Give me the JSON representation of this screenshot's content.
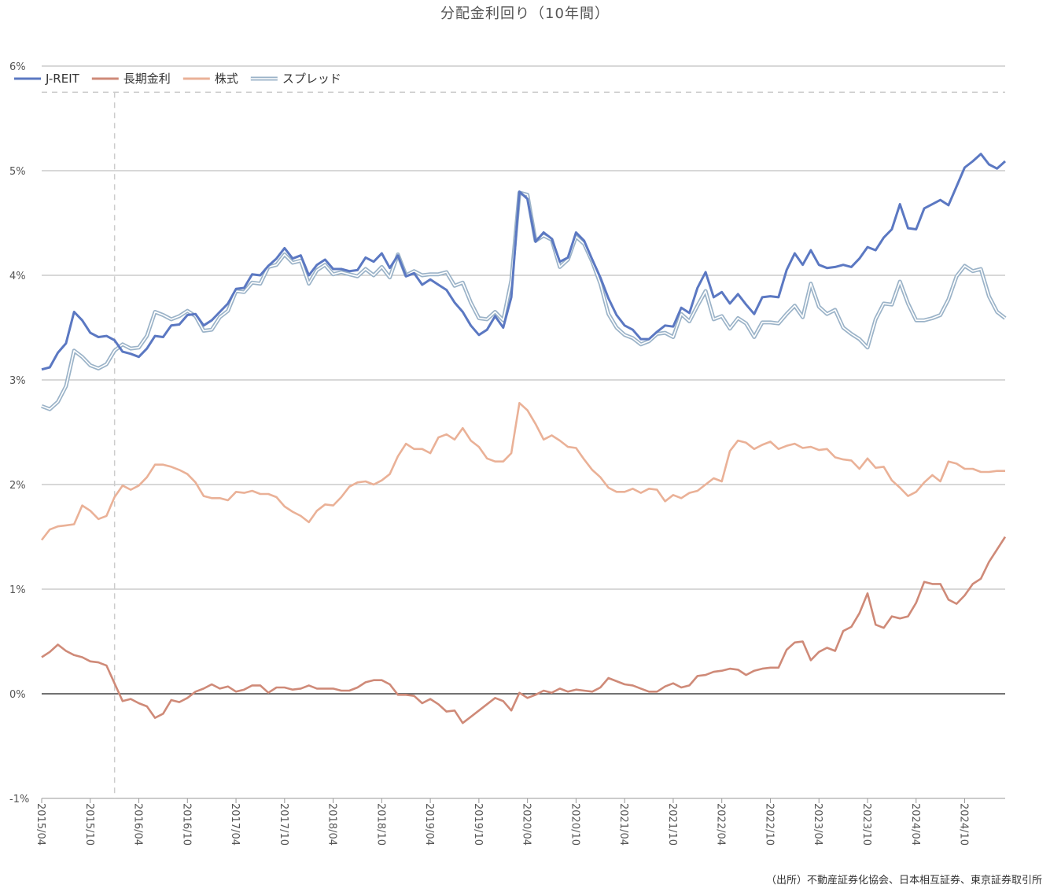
{
  "title": "分配金利回り（10年間）",
  "source": "（出所）不動産証券化協会、日本相互証券、東京証券取引所",
  "colors": {
    "jreit": "#5b78c2",
    "bond": "#cf8a78",
    "stock": "#eab197",
    "spread": "#9bb3c8",
    "grid": "#c0c0c0",
    "zero": "#444444",
    "dash": "#cccccc"
  },
  "chart_data": {
    "type": "line",
    "title": "分配金利回り（10年間）",
    "y_unit": "%",
    "ylim": [
      -1,
      6
    ],
    "y_ticks": [
      {
        "value": 6,
        "label": "6%"
      },
      {
        "value": 5,
        "label": "5%"
      },
      {
        "value": 4,
        "label": "4%"
      },
      {
        "value": 3,
        "label": "3%"
      },
      {
        "value": 2,
        "label": "2%"
      },
      {
        "value": 1,
        "label": "1%"
      },
      {
        "value": 0,
        "label": "0%"
      },
      {
        "value": -1,
        "label": "-1%"
      }
    ],
    "x_start": "2015/04",
    "x_ticks": [
      "2015/04",
      "2015/10",
      "2016/04",
      "2016/10",
      "2017/04",
      "2017/10",
      "2018/04",
      "2018/10",
      "2019/04",
      "2019/10",
      "2020/04",
      "2020/10",
      "2021/04",
      "2021/10",
      "2022/04",
      "2022/10",
      "2023/04",
      "2023/10",
      "2024/04",
      "2024/10"
    ],
    "grid": true,
    "legend_position": "top-left",
    "vertical_reference_month": "2016/01",
    "dashed_reference_level": 5.75,
    "series": [
      {
        "key": "jreit",
        "name": "J-REIT",
        "style": "solid-thick",
        "values": [
          3.1,
          3.12,
          3.26,
          3.35,
          3.65,
          3.57,
          3.45,
          3.41,
          3.42,
          3.38,
          3.27,
          3.25,
          3.22,
          3.3,
          3.42,
          3.41,
          3.52,
          3.53,
          3.62,
          3.63,
          3.52,
          3.57,
          3.65,
          3.73,
          3.87,
          3.88,
          4.01,
          4.0,
          4.09,
          4.16,
          4.26,
          4.16,
          4.19,
          4.0,
          4.1,
          4.15,
          4.06,
          4.06,
          4.04,
          4.05,
          4.17,
          4.13,
          4.21,
          4.07,
          4.19,
          3.99,
          4.02,
          3.91,
          3.96,
          3.91,
          3.86,
          3.74,
          3.65,
          3.52,
          3.43,
          3.48,
          3.61,
          3.5,
          3.79,
          4.8,
          4.73,
          4.32,
          4.41,
          4.35,
          4.13,
          4.17,
          4.41,
          4.33,
          4.15,
          3.98,
          3.78,
          3.62,
          3.52,
          3.48,
          3.39,
          3.39,
          3.46,
          3.52,
          3.51,
          3.69,
          3.64,
          3.88,
          4.03,
          3.79,
          3.84,
          3.73,
          3.82,
          3.72,
          3.63,
          3.79,
          3.8,
          3.79,
          4.05,
          4.21,
          4.1,
          4.24,
          4.1,
          4.07,
          4.08,
          4.1,
          4.08,
          4.16,
          4.27,
          4.24,
          4.36,
          4.44,
          4.68,
          4.45,
          4.44,
          4.64,
          4.68,
          4.72,
          4.67,
          4.85,
          5.03,
          5.09,
          5.16,
          5.06,
          5.02,
          5.09
        ]
      },
      {
        "key": "bond",
        "name": "長期金利",
        "style": "solid",
        "values": [
          0.35,
          0.4,
          0.47,
          0.41,
          0.37,
          0.35,
          0.31,
          0.3,
          0.27,
          0.1,
          -0.07,
          -0.05,
          -0.09,
          -0.12,
          -0.23,
          -0.19,
          -0.06,
          -0.08,
          -0.04,
          0.02,
          0.05,
          0.09,
          0.05,
          0.07,
          0.02,
          0.04,
          0.08,
          0.08,
          0.01,
          0.06,
          0.06,
          0.04,
          0.05,
          0.08,
          0.05,
          0.05,
          0.05,
          0.03,
          0.03,
          0.06,
          0.11,
          0.13,
          0.13,
          0.09,
          -0.01,
          -0.01,
          -0.02,
          -0.09,
          -0.05,
          -0.1,
          -0.17,
          -0.16,
          -0.28,
          -0.22,
          -0.16,
          -0.1,
          -0.04,
          -0.07,
          -0.16,
          0.01,
          -0.04,
          -0.01,
          0.03,
          0.01,
          0.05,
          0.02,
          0.04,
          0.03,
          0.02,
          0.06,
          0.15,
          0.12,
          0.09,
          0.08,
          0.05,
          0.02,
          0.02,
          0.07,
          0.1,
          0.06,
          0.08,
          0.17,
          0.18,
          0.21,
          0.22,
          0.24,
          0.23,
          0.18,
          0.22,
          0.24,
          0.25,
          0.25,
          0.42,
          0.49,
          0.5,
          0.32,
          0.4,
          0.44,
          0.41,
          0.6,
          0.64,
          0.77,
          0.96,
          0.66,
          0.63,
          0.74,
          0.72,
          0.74,
          0.87,
          1.07,
          1.05,
          1.05,
          0.9,
          0.86,
          0.94,
          1.05,
          1.1,
          1.26,
          1.38,
          1.5
        ]
      },
      {
        "key": "stock",
        "name": "株式",
        "style": "solid",
        "values": [
          1.47,
          1.57,
          1.6,
          1.61,
          1.62,
          1.8,
          1.75,
          1.67,
          1.7,
          1.88,
          1.99,
          1.95,
          1.99,
          2.07,
          2.19,
          2.19,
          2.17,
          2.14,
          2.1,
          2.02,
          1.89,
          1.87,
          1.87,
          1.85,
          1.93,
          1.92,
          1.94,
          1.91,
          1.91,
          1.88,
          1.79,
          1.74,
          1.7,
          1.64,
          1.75,
          1.81,
          1.8,
          1.88,
          1.98,
          2.02,
          2.03,
          2.0,
          2.04,
          2.1,
          2.27,
          2.39,
          2.34,
          2.34,
          2.3,
          2.45,
          2.48,
          2.43,
          2.54,
          2.42,
          2.36,
          2.25,
          2.22,
          2.22,
          2.3,
          2.78,
          2.71,
          2.58,
          2.43,
          2.47,
          2.42,
          2.36,
          2.35,
          2.24,
          2.14,
          2.07,
          1.97,
          1.93,
          1.93,
          1.96,
          1.92,
          1.96,
          1.95,
          1.84,
          1.9,
          1.87,
          1.92,
          1.94,
          2.0,
          2.06,
          2.03,
          2.32,
          2.42,
          2.4,
          2.34,
          2.38,
          2.41,
          2.34,
          2.37,
          2.39,
          2.35,
          2.36,
          2.33,
          2.34,
          2.26,
          2.24,
          2.23,
          2.15,
          2.25,
          2.16,
          2.17,
          2.04,
          1.97,
          1.89,
          1.93,
          2.02,
          2.09,
          2.03,
          2.22,
          2.2,
          2.15,
          2.15,
          2.12,
          2.12,
          2.13,
          2.13
        ]
      },
      {
        "key": "spread",
        "name": "スプレッド",
        "style": "double",
        "values": [
          2.75,
          2.72,
          2.79,
          2.94,
          3.28,
          3.22,
          3.14,
          3.11,
          3.15,
          3.28,
          3.34,
          3.3,
          3.31,
          3.42,
          3.65,
          3.62,
          3.58,
          3.61,
          3.66,
          3.61,
          3.47,
          3.48,
          3.6,
          3.66,
          3.85,
          3.84,
          3.93,
          3.92,
          4.08,
          4.1,
          4.2,
          4.12,
          4.14,
          3.92,
          4.05,
          4.1,
          4.01,
          4.03,
          4.01,
          3.99,
          4.06,
          4.0,
          4.08,
          3.98,
          4.2,
          4.0,
          4.04,
          4.0,
          4.01,
          4.01,
          4.03,
          3.9,
          3.93,
          3.74,
          3.59,
          3.58,
          3.65,
          3.57,
          3.95,
          4.79,
          4.77,
          4.33,
          4.38,
          4.34,
          4.08,
          4.15,
          4.37,
          4.3,
          4.13,
          3.92,
          3.63,
          3.5,
          3.43,
          3.4,
          3.34,
          3.37,
          3.44,
          3.45,
          3.41,
          3.63,
          3.56,
          3.71,
          3.85,
          3.58,
          3.61,
          3.49,
          3.59,
          3.54,
          3.41,
          3.55,
          3.55,
          3.54,
          3.63,
          3.71,
          3.6,
          3.92,
          3.7,
          3.63,
          3.67,
          3.5,
          3.44,
          3.39,
          3.31,
          3.58,
          3.73,
          3.72,
          3.94,
          3.73,
          3.57,
          3.57,
          3.59,
          3.62,
          3.77,
          3.99,
          4.09,
          4.04,
          4.06,
          3.8,
          3.65,
          3.59
        ]
      }
    ]
  }
}
